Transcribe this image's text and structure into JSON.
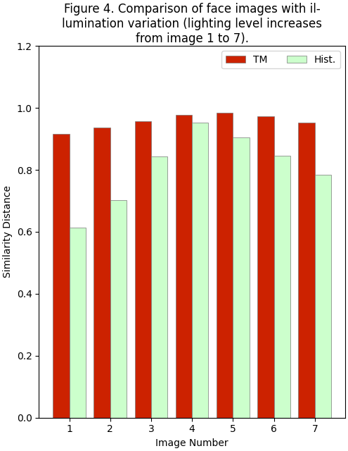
{
  "chart_data": {
    "type": "bar",
    "title": "Figure 4. Comparison of face images with il-\nlumination variation (lighting level increases\nfrom image 1 to 7).",
    "xlabel": "Image Number",
    "ylabel": "Similarity Distance",
    "categories": [
      "1",
      "2",
      "3",
      "4",
      "5",
      "6",
      "7"
    ],
    "series": [
      {
        "name": "TM",
        "color": "#CC2200",
        "values": [
          0.9166,
          0.9373,
          0.9578,
          0.9769,
          0.9845,
          0.9732,
          0.9536
        ]
      },
      {
        "name": "Hist.",
        "color": "#CCFFCC",
        "values": [
          0.6133,
          0.702,
          0.8423,
          0.9524,
          0.9056,
          0.8445,
          0.7852
        ]
      }
    ],
    "ylim": [
      0.0,
      1.2
    ],
    "yticks": [
      0.0,
      0.2,
      0.4,
      0.6,
      0.8,
      1.0,
      1.2
    ],
    "legend": "upper right"
  }
}
